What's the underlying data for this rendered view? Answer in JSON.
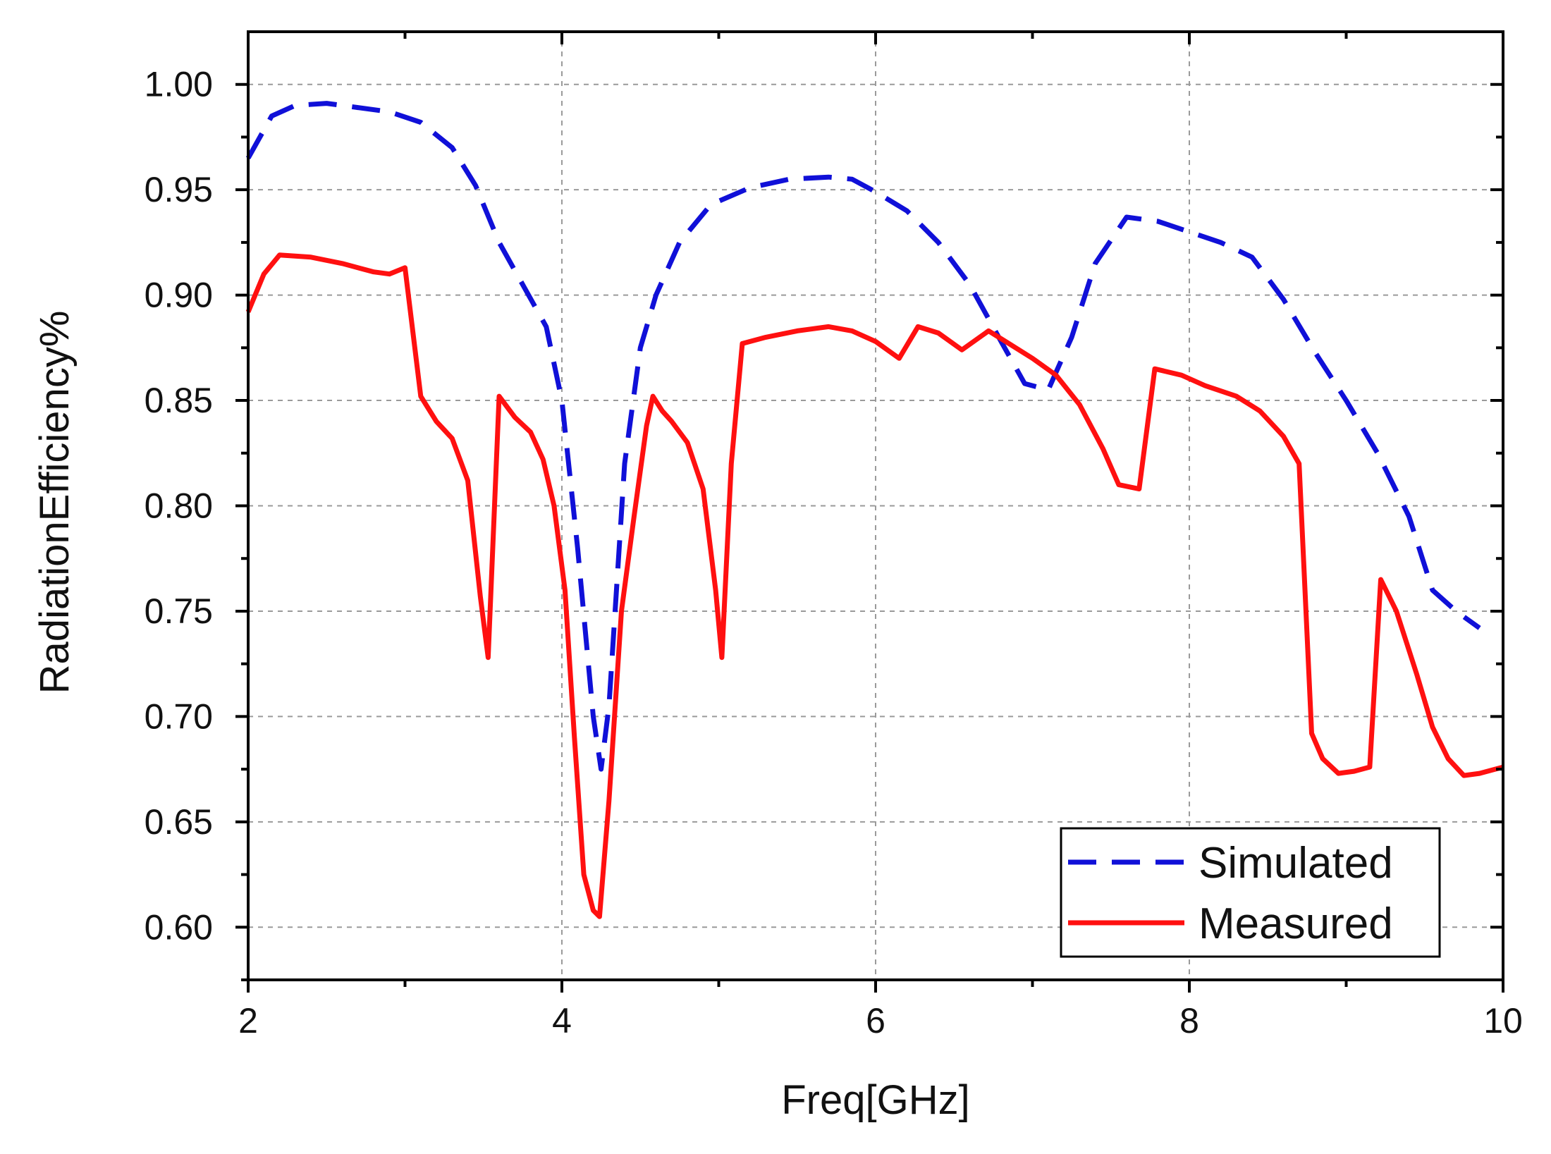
{
  "chart_data": {
    "type": "line",
    "title": "",
    "xlabel": "Freq[GHz]",
    "ylabel": "RadiationEfficiency%",
    "xlim": [
      2,
      10
    ],
    "ylim": [
      0.575,
      1.025
    ],
    "xticks": [
      2,
      4,
      6,
      8,
      10
    ],
    "xtick_labels": [
      "2",
      "4",
      "6",
      "8",
      "10"
    ],
    "yticks": [
      0.6,
      0.65,
      0.7,
      0.75,
      0.8,
      0.85,
      0.9,
      0.95,
      1.0
    ],
    "ytick_labels": [
      "0.60",
      "0.65",
      "0.70",
      "0.75",
      "0.80",
      "0.85",
      "0.90",
      "0.95",
      "1.00"
    ],
    "grid": true,
    "legend_position": "bottom-right",
    "series": [
      {
        "name": "Simulated",
        "color": "#1010d8",
        "style": "dashed",
        "x": [
          2.0,
          2.15,
          2.3,
          2.5,
          2.7,
          2.9,
          3.1,
          3.3,
          3.45,
          3.6,
          3.75,
          3.9,
          4.0,
          4.1,
          4.2,
          4.25,
          4.3,
          4.4,
          4.5,
          4.6,
          4.75,
          4.95,
          5.2,
          5.45,
          5.7,
          5.85,
          6.0,
          6.2,
          6.4,
          6.6,
          6.8,
          6.95,
          7.1,
          7.25,
          7.4,
          7.6,
          7.8,
          8.0,
          8.2,
          8.4,
          8.6,
          8.8,
          9.0,
          9.2,
          9.4,
          9.55,
          9.7,
          9.85
        ],
        "values": [
          0.965,
          0.985,
          0.99,
          0.991,
          0.989,
          0.987,
          0.982,
          0.97,
          0.952,
          0.925,
          0.905,
          0.885,
          0.85,
          0.78,
          0.7,
          0.675,
          0.705,
          0.82,
          0.875,
          0.9,
          0.925,
          0.943,
          0.951,
          0.955,
          0.956,
          0.955,
          0.949,
          0.94,
          0.925,
          0.905,
          0.878,
          0.858,
          0.855,
          0.88,
          0.915,
          0.937,
          0.935,
          0.93,
          0.925,
          0.918,
          0.898,
          0.873,
          0.85,
          0.825,
          0.795,
          0.76,
          0.75,
          0.742
        ]
      },
      {
        "name": "Measured",
        "color": "#ff1010",
        "style": "solid",
        "x": [
          2.0,
          2.1,
          2.2,
          2.4,
          2.6,
          2.8,
          2.9,
          3.0,
          3.1,
          3.2,
          3.3,
          3.4,
          3.48,
          3.53,
          3.6,
          3.7,
          3.8,
          3.88,
          3.95,
          4.02,
          4.08,
          4.14,
          4.2,
          4.24,
          4.3,
          4.38,
          4.46,
          4.54,
          4.58,
          4.64,
          4.7,
          4.8,
          4.9,
          4.98,
          5.02,
          5.08,
          5.15,
          5.3,
          5.5,
          5.7,
          5.85,
          6.0,
          6.15,
          6.27,
          6.4,
          6.55,
          6.72,
          6.85,
          7.0,
          7.15,
          7.3,
          7.45,
          7.55,
          7.68,
          7.78,
          7.95,
          8.1,
          8.3,
          8.45,
          8.6,
          8.7,
          8.78,
          8.85,
          8.95,
          9.05,
          9.15,
          9.22,
          9.32,
          9.45,
          9.55,
          9.65,
          9.75,
          9.85,
          10.0
        ],
        "values": [
          0.892,
          0.91,
          0.919,
          0.918,
          0.915,
          0.911,
          0.91,
          0.913,
          0.852,
          0.84,
          0.832,
          0.812,
          0.757,
          0.728,
          0.852,
          0.842,
          0.835,
          0.822,
          0.8,
          0.76,
          0.69,
          0.625,
          0.608,
          0.605,
          0.66,
          0.75,
          0.795,
          0.838,
          0.852,
          0.845,
          0.84,
          0.83,
          0.808,
          0.76,
          0.728,
          0.82,
          0.877,
          0.88,
          0.883,
          0.885,
          0.883,
          0.878,
          0.87,
          0.885,
          0.882,
          0.874,
          0.883,
          0.877,
          0.87,
          0.862,
          0.848,
          0.827,
          0.81,
          0.808,
          0.865,
          0.862,
          0.857,
          0.852,
          0.845,
          0.833,
          0.82,
          0.692,
          0.68,
          0.673,
          0.674,
          0.676,
          0.765,
          0.75,
          0.72,
          0.695,
          0.68,
          0.672,
          0.673,
          0.676
        ]
      }
    ]
  }
}
